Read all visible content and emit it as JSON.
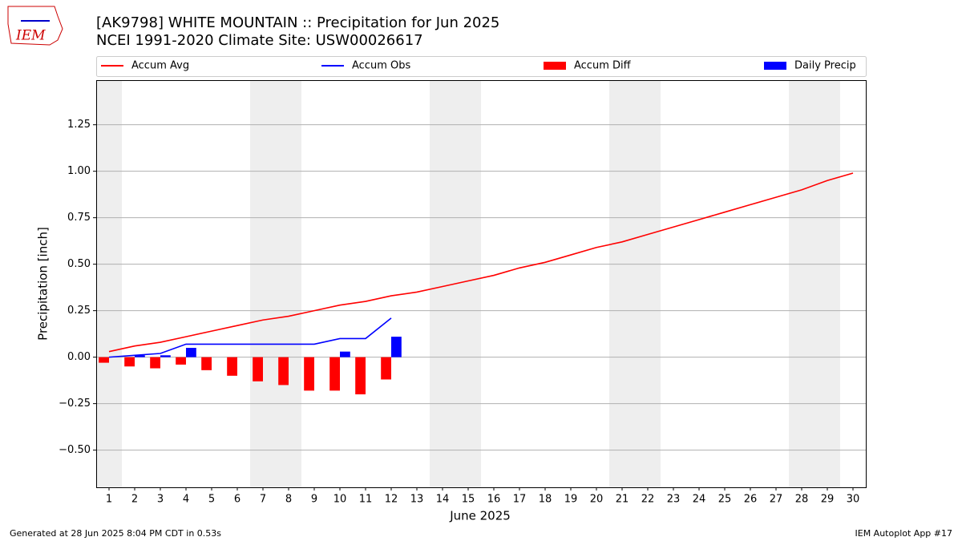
{
  "chart_data": {
    "type": "combo",
    "title": "[AK9798] WHITE MOUNTAIN :: Precipitation for Jun 2025",
    "subtitle": "NCEI 1991-2020 Climate Site: USW00026617",
    "xlabel": "June 2025",
    "ylabel": "Precipitation [inch]",
    "x": [
      1,
      2,
      3,
      4,
      5,
      6,
      7,
      8,
      9,
      10,
      11,
      12,
      13,
      14,
      15,
      16,
      17,
      18,
      19,
      20,
      21,
      22,
      23,
      24,
      25,
      26,
      27,
      28,
      29,
      30
    ],
    "xlim": [
      0.5,
      30.5
    ],
    "xticks": [
      1,
      2,
      3,
      4,
      5,
      6,
      7,
      8,
      9,
      10,
      11,
      12,
      13,
      14,
      15,
      16,
      17,
      18,
      19,
      20,
      21,
      22,
      23,
      24,
      25,
      26,
      27,
      28,
      29,
      30
    ],
    "ylim": [
      -0.7,
      1.49
    ],
    "yticks": [
      {
        "value": -0.5,
        "label": "−0.50"
      },
      {
        "value": -0.25,
        "label": "−0.25"
      },
      {
        "value": 0,
        "label": "0.00"
      },
      {
        "value": 0.25,
        "label": "0.25"
      },
      {
        "value": 0.5,
        "label": "0.50"
      },
      {
        "value": 0.75,
        "label": "0.75"
      },
      {
        "value": 1,
        "label": "1.00"
      },
      {
        "value": 1.25,
        "label": "1.25"
      }
    ],
    "grid": true,
    "shaded_days": [
      1,
      7,
      8,
      14,
      15,
      21,
      22,
      28,
      29
    ],
    "series": [
      {
        "name": "Accum Avg",
        "type": "line",
        "color": "#ff0000",
        "values": [
          0.03,
          0.06,
          0.08,
          0.11,
          0.14,
          0.17,
          0.2,
          0.22,
          0.25,
          0.28,
          0.3,
          0.33,
          0.35,
          0.38,
          0.41,
          0.44,
          0.48,
          0.51,
          0.55,
          0.59,
          0.62,
          0.66,
          0.7,
          0.74,
          0.78,
          0.82,
          0.86,
          0.9,
          0.95,
          0.99
        ]
      },
      {
        "name": "Accum Obs",
        "type": "line",
        "color": "#0000ff",
        "values": [
          0.0,
          0.01,
          0.02,
          0.07,
          0.07,
          0.07,
          0.07,
          0.07,
          0.07,
          0.1,
          0.1,
          0.21,
          null,
          null,
          null,
          null,
          null,
          null,
          null,
          null,
          null,
          null,
          null,
          null,
          null,
          null,
          null,
          null,
          null,
          null
        ]
      },
      {
        "name": "Accum Diff",
        "type": "bar",
        "color": "#ff0000",
        "values": [
          -0.03,
          -0.05,
          -0.06,
          -0.04,
          -0.07,
          -0.1,
          -0.13,
          -0.15,
          -0.18,
          -0.18,
          -0.2,
          -0.12,
          null,
          null,
          null,
          null,
          null,
          null,
          null,
          null,
          null,
          null,
          null,
          null,
          null,
          null,
          null,
          null,
          null,
          null
        ]
      },
      {
        "name": "Daily Precip",
        "type": "bar",
        "color": "#0000ff",
        "values": [
          0,
          0.01,
          0.01,
          0.05,
          0,
          0,
          0,
          0,
          0,
          0.03,
          0,
          0.11,
          null,
          null,
          null,
          null,
          null,
          null,
          null,
          null,
          null,
          null,
          null,
          null,
          null,
          null,
          null,
          null,
          null,
          null
        ]
      }
    ],
    "footer_left": "Generated at 28 Jun 2025 8:04 PM CDT in 0.53s",
    "footer_right": "IEM Autoplot App #17",
    "logo_text": "IEM"
  }
}
